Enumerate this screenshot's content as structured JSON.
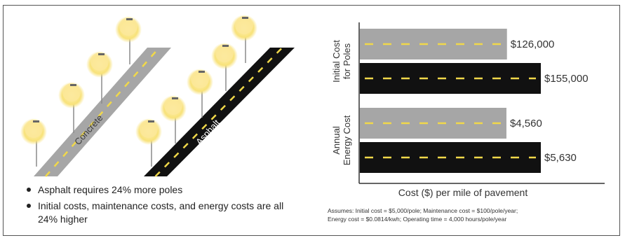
{
  "illustration": {
    "roads": [
      {
        "label": "Concrete",
        "surface_color": "#a6a6a6"
      },
      {
        "label": "Asphalt",
        "surface_color": "#111111"
      }
    ],
    "lamp_glow_color": "#fbe89a",
    "pole_color": "#8a8a8a",
    "centerline_color": "#f0d84a"
  },
  "bullets": [
    "Asphalt requires 24% more poles",
    "Initial costs, maintenance costs, and energy costs are all 24% higher"
  ],
  "chart_data": {
    "type": "bar",
    "orientation": "horizontal",
    "groups": [
      {
        "label": "Initial Cost for Poles",
        "label_lines": [
          "Initial Cost",
          "for Poles"
        ],
        "bars": [
          {
            "surface": "Concrete",
            "value": 126000,
            "label": "$126,000"
          },
          {
            "surface": "Asphalt",
            "value": 155000,
            "label": "$155,000"
          }
        ]
      },
      {
        "label": "Annual Energy Cost",
        "label_lines": [
          "Annual",
          "Energy Cost"
        ],
        "bars": [
          {
            "surface": "Concrete",
            "value": 4560,
            "label": "$4,560"
          },
          {
            "surface": "Asphalt",
            "value": 5630,
            "label": "$5,630"
          }
        ]
      }
    ],
    "xlabel": "Cost ($) per mile of pavement",
    "colors": {
      "Concrete": "#a6a6a6",
      "Asphalt": "#111111",
      "dash": "#f0d84a"
    }
  },
  "assumptions": [
    "Assumes: Initial cost = $5,000/pole; Maintenance cost = $100/pole/year;",
    "Energy cost = $0.0814/kwh; Operating time = 4,000 hours/pole/year"
  ]
}
